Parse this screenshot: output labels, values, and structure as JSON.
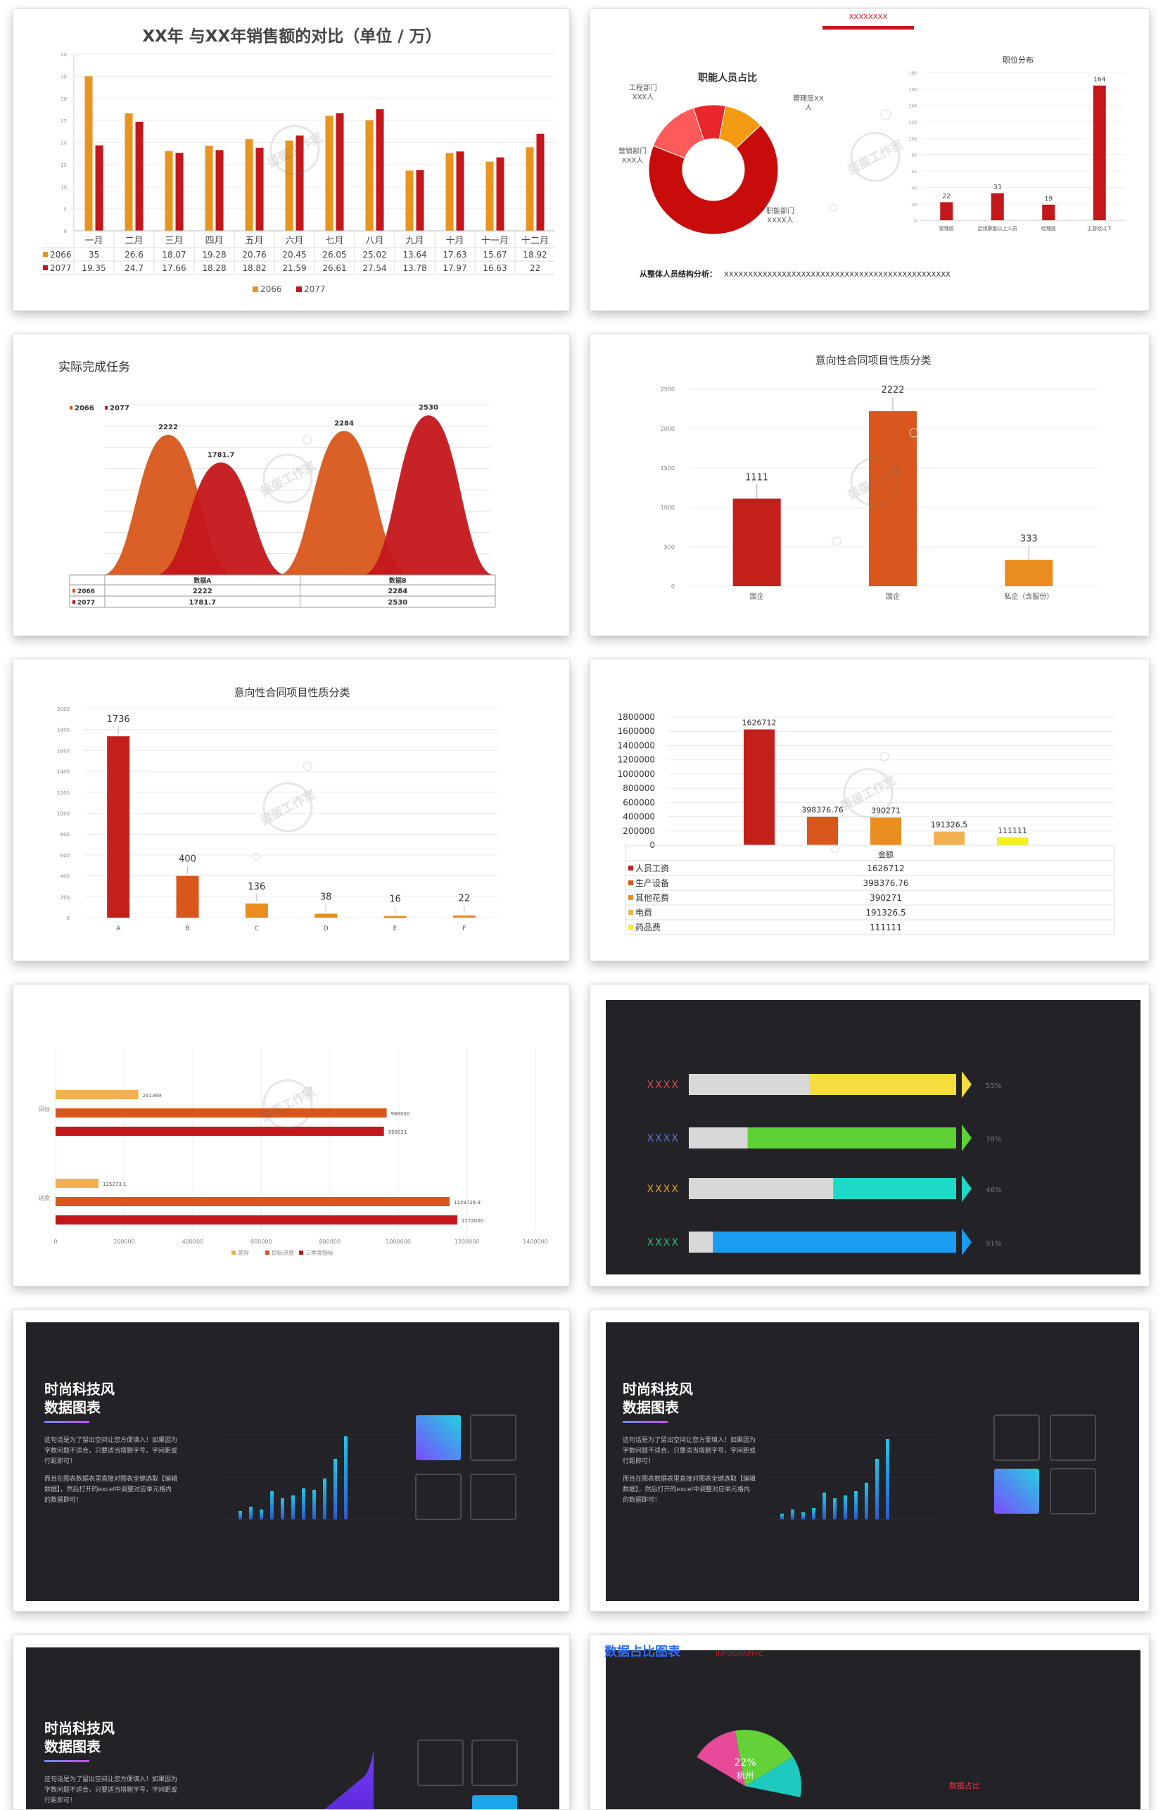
{
  "slides": {
    "s1": {
      "chart_data": {
        "type": "bar",
        "title": "XX年 与XX年销售额的对比（单位 / 万）",
        "categories": [
          "一月",
          "二月",
          "三月",
          "四月",
          "五月",
          "六月",
          "七月",
          "八月",
          "九月",
          "十月",
          "十一月",
          "十二月"
        ],
        "series": [
          {
            "name": "2066",
            "values": [
              35,
              26.6,
              18.07,
              19.28,
              20.76,
              20.45,
              26.05,
              25.02,
              13.64,
              17.63,
              15.67,
              18.92
            ]
          },
          {
            "name": "2077",
            "values": [
              19.35,
              24.7,
              17.66,
              18.28,
              18.82,
              21.59,
              26.61,
              27.54,
              13.78,
              17.97,
              16.63,
              22
            ]
          }
        ],
        "colors": [
          "#e8941f",
          "#c4171b"
        ],
        "ylim": [
          0,
          40
        ],
        "yticks": [
          0,
          5,
          10,
          15,
          20,
          25,
          30,
          35,
          40
        ],
        "legend": "bottom"
      }
    },
    "s2": {
      "header_text": "XXXXXXXX",
      "pie": {
        "chart_data": {
          "type": "pie",
          "title": "职能人员占比",
          "labels": [
            "工程部门 XXX人",
            "营销部门 XXX人",
            "管理层XX 人",
            "职能部门 XXXX人"
          ],
          "values": [
            14,
            8,
            10,
            68
          ],
          "colors": [
            "#ff5a5a",
            "#e8262b",
            "#f39a12",
            "#c80c0c"
          ]
        }
      },
      "bar": {
        "chart_data": {
          "type": "bar",
          "title": "职位分布",
          "categories": [
            "管理层",
            "后续职能以上人员",
            "经理层",
            "主管经以下"
          ],
          "values": [
            22,
            33,
            19,
            164
          ],
          "ylim": [
            0,
            180
          ],
          "yticks": [
            0,
            20,
            40,
            60,
            80,
            100,
            120,
            140,
            160,
            180
          ],
          "color": "#c4171b"
        }
      },
      "analysis_label": "从整体人员结构分析：",
      "analysis_text": "XXXXXXXXXXXXXXXXXXXXXXXXXXXXXXXXXXXXXXXXXXXXXXX"
    },
    "s3": {
      "chart_data": {
        "type": "area",
        "title": "实际完成任务",
        "categories": [
          "数据A",
          "数据B"
        ],
        "series": [
          {
            "name": "2066",
            "values": [
              2222,
              2284
            ]
          },
          {
            "name": "2077",
            "values": [
              1781.7,
              2530
            ]
          }
        ],
        "colors": [
          "#d9571c",
          "#c4171b"
        ],
        "legend": "top-left"
      }
    },
    "s4": {
      "chart_data": {
        "type": "bar",
        "title": "意向性合同项目性质分类",
        "categories": [
          "国企",
          "国企",
          "私企（含股份）"
        ],
        "values": [
          1111,
          2222,
          333
        ],
        "colors": [
          "#c4201b",
          "#d9571c",
          "#ea8d1f"
        ],
        "ylim": [
          0,
          2500
        ],
        "yticks": [
          0,
          500,
          1000,
          1500,
          2000,
          2500
        ]
      }
    },
    "s5": {
      "chart_data": {
        "type": "bar",
        "title": "意向性合同项目性质分类",
        "categories": [
          "A",
          "B",
          "C",
          "D",
          "E",
          "F"
        ],
        "values": [
          1736,
          400,
          136,
          38,
          16,
          22
        ],
        "colors": [
          "#c4201b",
          "#d9571c",
          "#ea8d1f",
          "#ea8d1f",
          "#ea8d1f",
          "#ea8d1f"
        ],
        "ylim": [
          0,
          2000
        ],
        "yticks": [
          0,
          200,
          400,
          600,
          800,
          1000,
          1200,
          1400,
          1600,
          1800,
          2000
        ]
      }
    },
    "s6": {
      "chart_data": {
        "type": "bar",
        "categories": [
          "人员工资",
          "生产设备",
          "其他花费",
          "电费",
          "药品费"
        ],
        "values": [
          1626712,
          398376.76,
          390271,
          191326.5,
          111111
        ],
        "colors": [
          "#c4201b",
          "#d9571c",
          "#ea8d1f",
          "#f3b050",
          "#f8f01a"
        ],
        "ylim": [
          0,
          1800000
        ],
        "yticks": [
          0,
          200000,
          400000,
          600000,
          800000,
          1000000,
          1200000,
          1400000,
          1600000,
          1800000
        ],
        "table_header": "金额"
      }
    },
    "s7": {
      "chart_data": {
        "type": "bar",
        "orientation": "horizontal",
        "categories": [
          "目标",
          "进度"
        ],
        "series": [
          {
            "name": "差异",
            "values": [
              241369,
              125273.1
            ]
          },
          {
            "name": "目标进度",
            "values": [
              966000,
              1149726.9
            ]
          },
          {
            "name": "三季度指标",
            "values": [
              958021,
              1172000
            ]
          }
        ],
        "colors": [
          "#f3b050",
          "#d9571c",
          "#c4171b"
        ],
        "xlim": [
          0,
          1400000
        ],
        "xticks": [
          0,
          200000,
          400000,
          600000,
          800000,
          1000000,
          1200000,
          1400000
        ],
        "legend": "bottom"
      }
    },
    "s8": {
      "chart_data": {
        "type": "bar",
        "orientation": "horizontal",
        "categories": [
          "XXXX",
          "XXXX",
          "XXXX",
          "XXXX"
        ],
        "values": [
          55,
          78,
          46,
          91
        ],
        "value_labels": [
          "55%",
          "78%",
          "46%",
          "91%"
        ],
        "label_colors": [
          "#e84a4a",
          "#5b7bd8",
          "#e8a01f",
          "#2cc073"
        ],
        "fill_colors": [
          "#f4dd3c",
          "#5ed135",
          "#1ed9c8",
          "#1a9cf0"
        ]
      }
    },
    "tech": {
      "title_line1": "时尚科技风",
      "title_line2": "数据图表",
      "para1": "这句话是为了留出空间让您方便填入！如果因为字数问题不适合，只要适当增删字号，字间距或行距即可！",
      "para2": "而且在图表数据表里直接对图表全键选取【编辑数据】，然后打开的excel中调整对应单元格内的数据即可！"
    },
    "s9": {
      "chart_data": {
        "type": "bar",
        "values": [
          12,
          18,
          14,
          40,
          30,
          34,
          44,
          42,
          58,
          86,
          118
        ]
      }
    },
    "s10": {
      "chart_data": {
        "type": "bar",
        "values": [
          8,
          14,
          10,
          16,
          38,
          30,
          34,
          40,
          52,
          86,
          114
        ]
      }
    },
    "s12": {
      "header_title": "数据占比图表",
      "header_sub": "INFOGRAPHIC",
      "chart_data": {
        "type": "pie",
        "labels": [
          "杭州"
        ],
        "values": [
          22
        ],
        "value_labels": [
          "22%"
        ],
        "colors": [
          "#62d238",
          "#1ec9c0",
          "#e84a9a"
        ]
      },
      "side_label": "数据占比"
    },
    "watermark_text": "蛋蛋工作室"
  }
}
